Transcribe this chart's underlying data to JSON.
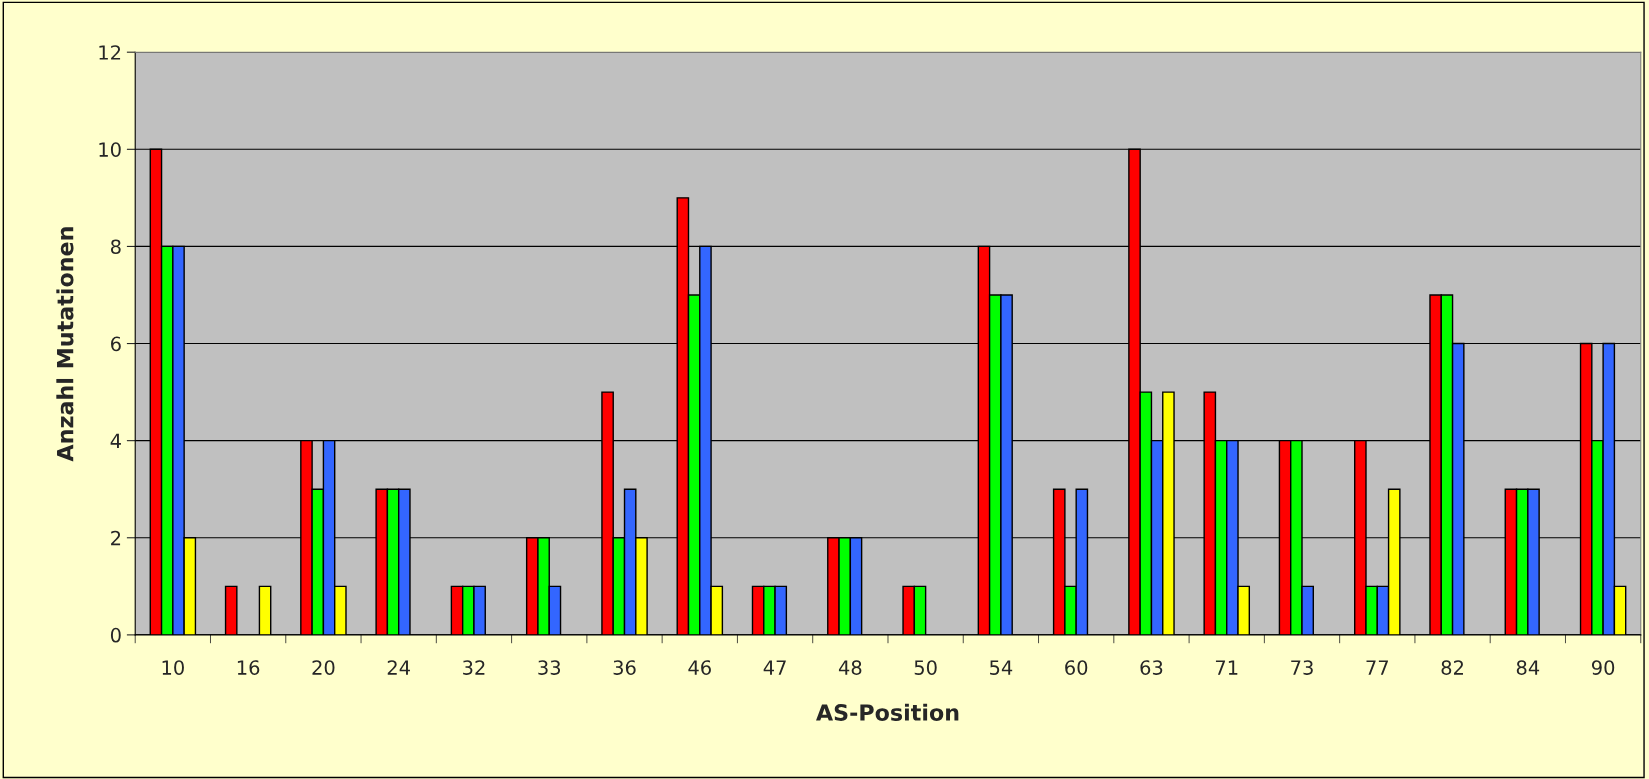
{
  "chart_data": {
    "type": "bar",
    "xlabel": "AS-Position",
    "ylabel": "Anzahl Mutationen",
    "categories": [
      "10",
      "16",
      "20",
      "24",
      "32",
      "33",
      "36",
      "46",
      "47",
      "48",
      "50",
      "54",
      "60",
      "63",
      "71",
      "73",
      "77",
      "82",
      "84",
      "90"
    ],
    "series": [
      {
        "color": "#ff0000",
        "values": [
          10,
          1,
          4,
          3,
          1,
          2,
          5,
          9,
          1,
          2,
          1,
          8,
          3,
          10,
          5,
          4,
          4,
          7,
          3,
          6
        ]
      },
      {
        "color": "#00ff00",
        "values": [
          8,
          null,
          3,
          3,
          1,
          2,
          2,
          7,
          1,
          2,
          1,
          7,
          1,
          5,
          4,
          4,
          1,
          7,
          3,
          4
        ]
      },
      {
        "color": "#3366ff",
        "values": [
          8,
          null,
          4,
          3,
          1,
          1,
          3,
          8,
          1,
          2,
          null,
          7,
          3,
          4,
          4,
          1,
          1,
          6,
          3,
          6
        ]
      },
      {
        "color": "#ffff00",
        "values": [
          2,
          1,
          1,
          null,
          null,
          null,
          2,
          1,
          null,
          null,
          null,
          null,
          null,
          5,
          1,
          null,
          3,
          null,
          null,
          1
        ]
      }
    ],
    "ylim": [
      0,
      12
    ],
    "yticks": [
      0,
      2,
      4,
      6,
      8,
      10,
      12
    ],
    "grid": "y",
    "legend": false
  }
}
